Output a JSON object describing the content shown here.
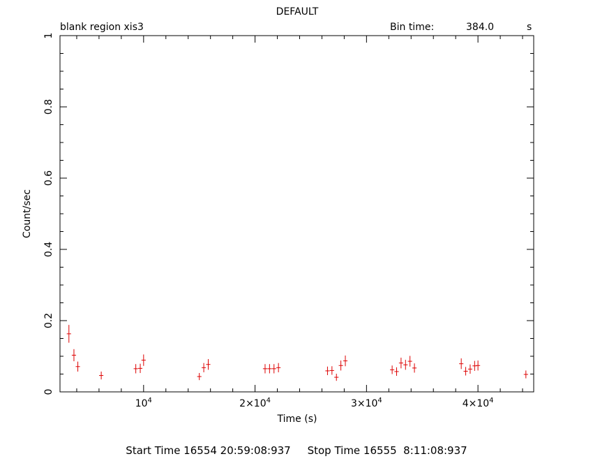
{
  "header": {
    "title": "DEFAULT",
    "left_label": "blank region  xis3",
    "bin_label": "Bin time:",
    "bin_value": "384.0",
    "bin_unit": "s"
  },
  "footer": {
    "start_label": "Start Time 16554 20:59:08:937",
    "stop_label": "Stop Time 16555  8:11:08:937"
  },
  "chart_data": {
    "type": "scatter",
    "title": "DEFAULT",
    "xlabel": "Time (s)",
    "ylabel": "Count/sec",
    "xlim": [
      2500,
      45000
    ],
    "ylim": [
      0,
      1
    ],
    "x_ticks": [
      {
        "value": 10000,
        "base": "10",
        "exp": "4"
      },
      {
        "value": 20000,
        "base": "2×10",
        "exp": "4"
      },
      {
        "value": 30000,
        "base": "3×10",
        "exp": "4"
      },
      {
        "value": 40000,
        "base": "4×10",
        "exp": "4"
      }
    ],
    "y_ticks": [
      {
        "value": 0,
        "label": "0"
      },
      {
        "value": 0.2,
        "label": "0.2"
      },
      {
        "value": 0.4,
        "label": "0.4"
      },
      {
        "value": 0.6,
        "label": "0.6"
      },
      {
        "value": 0.8,
        "label": "0.8"
      },
      {
        "value": 1,
        "label": "1"
      }
    ],
    "color": "#dd0000",
    "x_err": 192,
    "points": [
      {
        "x": 3300,
        "y": 0.163,
        "e": 0.025
      },
      {
        "x": 3750,
        "y": 0.103,
        "e": 0.017
      },
      {
        "x": 4100,
        "y": 0.071,
        "e": 0.014
      },
      {
        "x": 6200,
        "y": 0.046,
        "e": 0.011
      },
      {
        "x": 9300,
        "y": 0.065,
        "e": 0.013
      },
      {
        "x": 9700,
        "y": 0.066,
        "e": 0.013
      },
      {
        "x": 10000,
        "y": 0.089,
        "e": 0.016
      },
      {
        "x": 15000,
        "y": 0.043,
        "e": 0.01
      },
      {
        "x": 15400,
        "y": 0.068,
        "e": 0.013
      },
      {
        "x": 15800,
        "y": 0.077,
        "e": 0.015
      },
      {
        "x": 20900,
        "y": 0.065,
        "e": 0.013
      },
      {
        "x": 21300,
        "y": 0.065,
        "e": 0.013
      },
      {
        "x": 21700,
        "y": 0.065,
        "e": 0.013
      },
      {
        "x": 22100,
        "y": 0.068,
        "e": 0.013
      },
      {
        "x": 26500,
        "y": 0.059,
        "e": 0.012
      },
      {
        "x": 26900,
        "y": 0.06,
        "e": 0.012
      },
      {
        "x": 27300,
        "y": 0.041,
        "e": 0.01
      },
      {
        "x": 27700,
        "y": 0.074,
        "e": 0.014
      },
      {
        "x": 28100,
        "y": 0.087,
        "e": 0.015
      },
      {
        "x": 32300,
        "y": 0.062,
        "e": 0.012
      },
      {
        "x": 32700,
        "y": 0.057,
        "e": 0.012
      },
      {
        "x": 33100,
        "y": 0.081,
        "e": 0.015
      },
      {
        "x": 33500,
        "y": 0.076,
        "e": 0.014
      },
      {
        "x": 33900,
        "y": 0.086,
        "e": 0.015
      },
      {
        "x": 34300,
        "y": 0.067,
        "e": 0.013
      },
      {
        "x": 38500,
        "y": 0.079,
        "e": 0.015
      },
      {
        "x": 38900,
        "y": 0.058,
        "e": 0.012
      },
      {
        "x": 39300,
        "y": 0.064,
        "e": 0.013
      },
      {
        "x": 39700,
        "y": 0.073,
        "e": 0.014
      },
      {
        "x": 40000,
        "y": 0.074,
        "e": 0.014
      },
      {
        "x": 44300,
        "y": 0.049,
        "e": 0.011
      }
    ]
  }
}
